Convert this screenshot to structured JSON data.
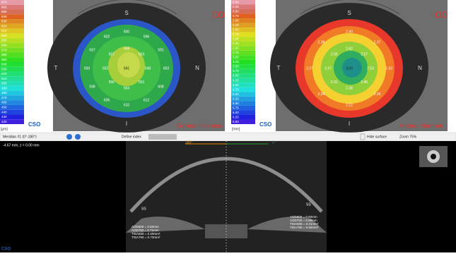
{
  "left_panel": {
    "scale_labels": [
      "670",
      "660",
      "650",
      "640",
      "630",
      "620",
      "610",
      "600",
      "590",
      "580",
      "570",
      "560",
      "550",
      "540",
      "530",
      "520",
      "510",
      "500",
      "490",
      "480",
      "470",
      "460",
      "450",
      "440",
      "430",
      "420"
    ],
    "unit": "[µm]",
    "eye": "OD",
    "directions": {
      "s": "S",
      "t": "T",
      "n": "N",
      "i": "I"
    },
    "center_value": "541",
    "inner_values": [
      "559",
      "553",
      "548",
      "551",
      "554",
      "556",
      "552",
      "557"
    ],
    "outer_values": [
      "600",
      "596",
      "591",
      "603",
      "608",
      "612",
      "610",
      "606",
      "598",
      "593",
      "597",
      "602"
    ],
    "title": "Corneal thickness",
    "logo": "CSO"
  },
  "right_panel": {
    "scale_labels": [
      "0.00",
      "0.25",
      "0.50",
      "0.75",
      "1.00",
      "1.25",
      "1.50",
      "1.75",
      "2.00",
      "2.25",
      "2.50",
      "2.75",
      "3.00",
      "3.25",
      "3.50",
      "3.75",
      "4.00",
      "4.25",
      "4.50",
      "4.75",
      "5.00",
      "5.25",
      "5.50",
      "5.75",
      "6.00",
      "6.25",
      "6.50"
    ],
    "unit": "[mm]",
    "eye": "OD",
    "directions": {
      "s": "S",
      "t": "T",
      "n": "N",
      "i": "I"
    },
    "center_value": "3.03",
    "inner_values": [
      "2.62",
      "2.57",
      "2.53",
      "2.45",
      "2.38",
      "2.31",
      "2.47",
      "2.55"
    ],
    "outer_values": [
      "2.40",
      "2.37",
      "2.33",
      "2.26",
      "2.22",
      "2.24",
      "2.37",
      "2.39"
    ],
    "title": "Anterior chamber",
    "logo": "CSO"
  },
  "toolbar": {
    "meridian": "Meridian #1 (0°-180°)",
    "define_index": "Define index",
    "hide_surface": "Hide surface",
    "zoom": "Zoom 75%"
  },
  "scan": {
    "position": "-4.67 mm, z = 0.00 mm",
    "angle_left": "180°",
    "angle_right": "0°",
    "left_marker": "SS",
    "right_marker": "SS",
    "left_measures": [
      "AOD500 = 0.50mm",
      "AOD750 = 0.71mm",
      "TISA500 = 0.20mm²",
      "TISA750 = 0.73mm²"
    ],
    "right_measures": [
      "AOD500 = 0.60mm",
      "AOD750 = 0.90mm",
      "TISA500 = 0.31mm²",
      "TISA750 = 0.60mm²"
    ],
    "logo": "CSO"
  }
}
